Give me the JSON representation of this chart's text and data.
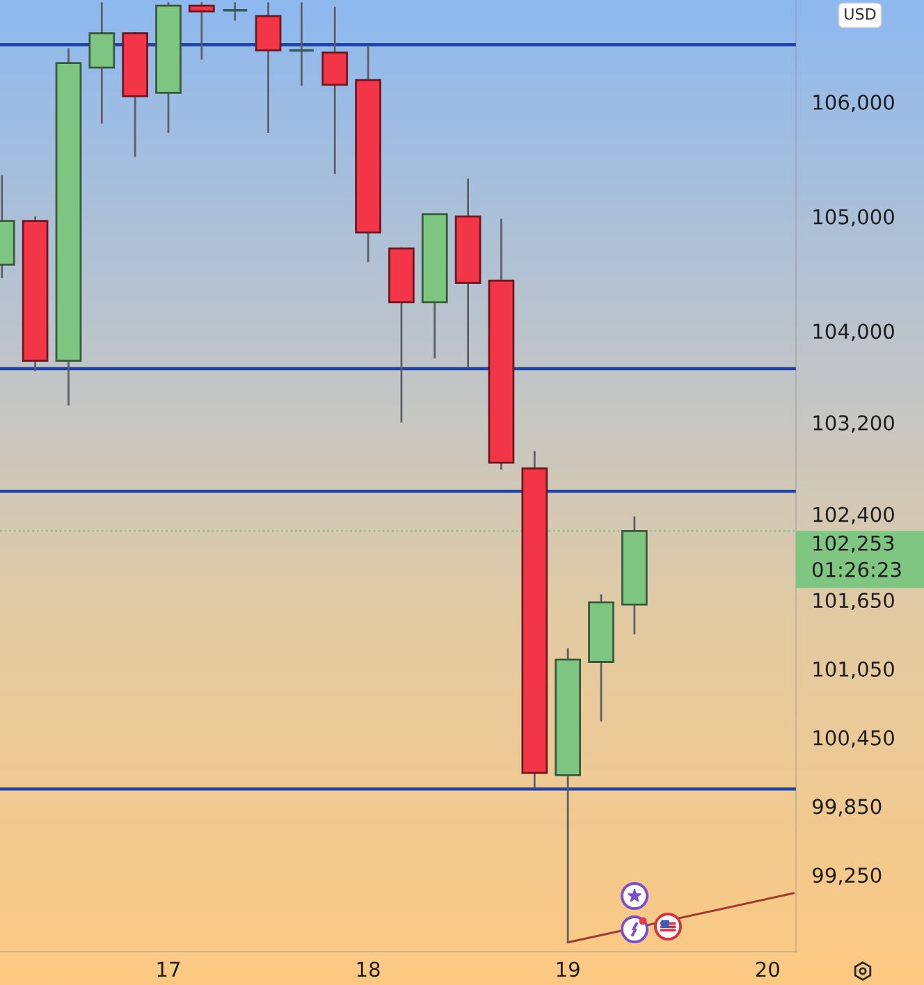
{
  "chart_data": {
    "type": "candlestick",
    "ylabel": "USD",
    "x": [
      16.1667,
      16.3333,
      16.5,
      16.6667,
      16.8333,
      17,
      17.1667,
      17.3333,
      17.5,
      17.6667,
      17.8333,
      18,
      18.1667,
      18.3333,
      18.5,
      18.6667,
      18.8333,
      19,
      19.1667,
      19.3333
    ],
    "ohlc": [
      [
        104580,
        105360,
        104460,
        104960
      ],
      [
        104960,
        105000,
        103650,
        103740
      ],
      [
        103740,
        106470,
        103350,
        106340
      ],
      [
        106300,
        106870,
        105810,
        106600
      ],
      [
        106600,
        106610,
        105520,
        106050
      ],
      [
        106080,
        106870,
        105730,
        106840
      ],
      [
        106840,
        106870,
        106370,
        106790
      ],
      [
        106800,
        106870,
        106710,
        106800
      ],
      [
        106750,
        106870,
        105730,
        106450
      ],
      [
        106450,
        106870,
        106140,
        106450
      ],
      [
        106430,
        106830,
        105370,
        106150
      ],
      [
        106190,
        106490,
        104600,
        104860
      ],
      [
        104720,
        104730,
        103200,
        104250
      ],
      [
        104250,
        105020,
        103760,
        105020
      ],
      [
        105000,
        105330,
        103680,
        104420
      ],
      [
        104440,
        104980,
        102790,
        102850
      ],
      [
        102800,
        102950,
        100010,
        100140
      ],
      [
        100120,
        101230,
        98660,
        101130
      ],
      [
        101110,
        101700,
        100590,
        101630
      ],
      [
        101610,
        102380,
        101350,
        102253
      ]
    ],
    "colors": [
      "#7dc580",
      "#f23648",
      "#7dc580",
      "#7dc580",
      "#f23648",
      "#7dc580",
      "#f23648",
      "#35585a",
      "#f23648",
      "#35585a",
      "#f23648",
      "#f23648",
      "#f23648",
      "#7dc580",
      "#f23648",
      "#f23648",
      "#f23648",
      "#7dc580",
      "#7dc580",
      "#7dc580"
    ],
    "series": [
      {
        "type": "line",
        "x": [
          19,
          20.13
        ],
        "values": [
          98660,
          99090
        ],
        "color": "#a23b2c"
      }
    ],
    "xlim": [
      16.157,
      20.142
    ],
    "xticks": [
      17,
      18,
      19,
      20
    ],
    "ylim": [
      98580,
      106890
    ],
    "yticks": [
      {
        "value": 99250,
        "label": "99,250"
      },
      {
        "value": 99850,
        "label": "99,850"
      },
      {
        "value": 100450,
        "label": "100,450"
      },
      {
        "value": 101050,
        "label": "101,050"
      },
      {
        "value": 101650,
        "label": "101,650"
      },
      {
        "value": 102400,
        "label": "102,400"
      },
      {
        "value": 103200,
        "label": "103,200"
      },
      {
        "value": 104000,
        "label": "104,000"
      },
      {
        "value": 105000,
        "label": "105,000"
      },
      {
        "value": 106000,
        "label": "106,000"
      }
    ],
    "ref_lines": [
      {
        "axis": "y",
        "value": 106500,
        "color": "#2342a8"
      },
      {
        "axis": "y",
        "value": 103670,
        "color": "#2342a8"
      },
      {
        "axis": "y",
        "value": 102600,
        "color": "#2342a8"
      },
      {
        "axis": "y",
        "value": 100000,
        "color": "#2342a8"
      },
      {
        "axis": "y",
        "value": 102253,
        "label": "102,253",
        "color": "#7fc683",
        "line_style": "dotted"
      }
    ],
    "annotations": [
      "01:26:23"
    ]
  }
}
